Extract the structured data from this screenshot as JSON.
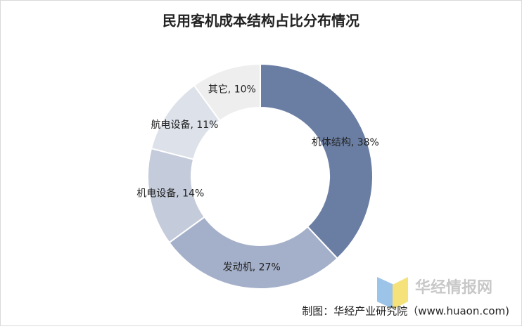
{
  "chart_data": {
    "type": "pie",
    "title": "民用客机成本结构占比分布情况",
    "values": [
      38,
      27,
      14,
      11,
      10
    ],
    "value_labels": [
      "机体结构, 38%",
      "发动机, 27%",
      "机电设备, 14%",
      "航电设备, 11%",
      "其它, 10%"
    ],
    "colors": [
      "#6a7ea3",
      "#a4b0c9",
      "#c4cbda",
      "#dde2ea",
      "#eeeeee"
    ],
    "donut": true,
    "source": "制图：华经产业研究院（www.huaon.com)",
    "watermark": "华经情报网"
  }
}
